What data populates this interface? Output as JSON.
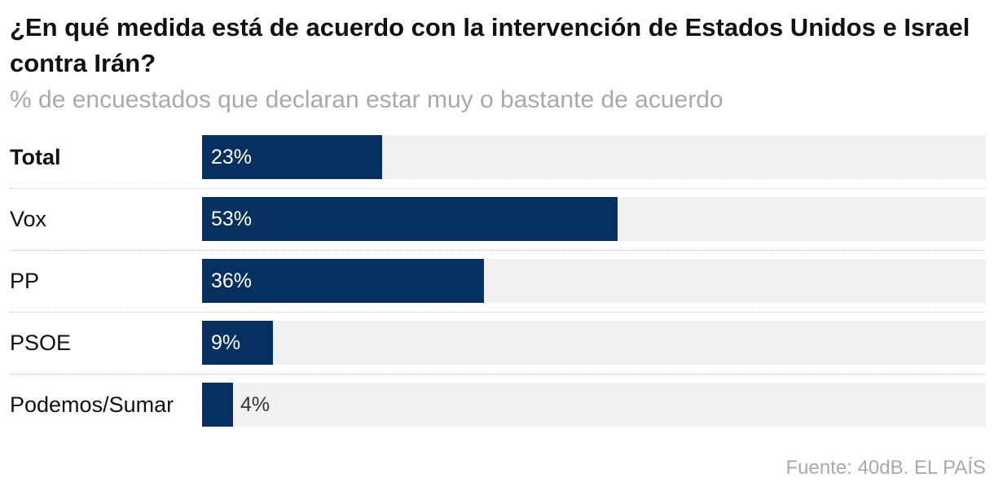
{
  "title": "¿En qué medida está de acuerdo con la intervención de Estados Unidos e Israel contra Irán?",
  "subtitle": "% de encuestados que declaran estar muy o bastante de acuerdo",
  "source": "Fuente: 40dB. EL PAÍS",
  "colors": {
    "bar": "#05305f",
    "track": "#f1f1f1",
    "muted": "#a9a9a9"
  },
  "chart_data": {
    "type": "bar",
    "orientation": "horizontal",
    "title": "¿En qué medida está de acuerdo con la intervención de Estados Unidos e Israel contra Irán?",
    "subtitle": "% de encuestados que declaran estar muy o bastante de acuerdo",
    "xlim": [
      0,
      100
    ],
    "categories": [
      "Total",
      "Vox",
      "PP",
      "PSOE",
      "Podemos/Sumar"
    ],
    "values": [
      23,
      53,
      36,
      9,
      4
    ],
    "labels": [
      "23%",
      "53%",
      "36%",
      "9%",
      "4%"
    ],
    "bold": [
      true,
      false,
      false,
      false,
      false
    ]
  }
}
